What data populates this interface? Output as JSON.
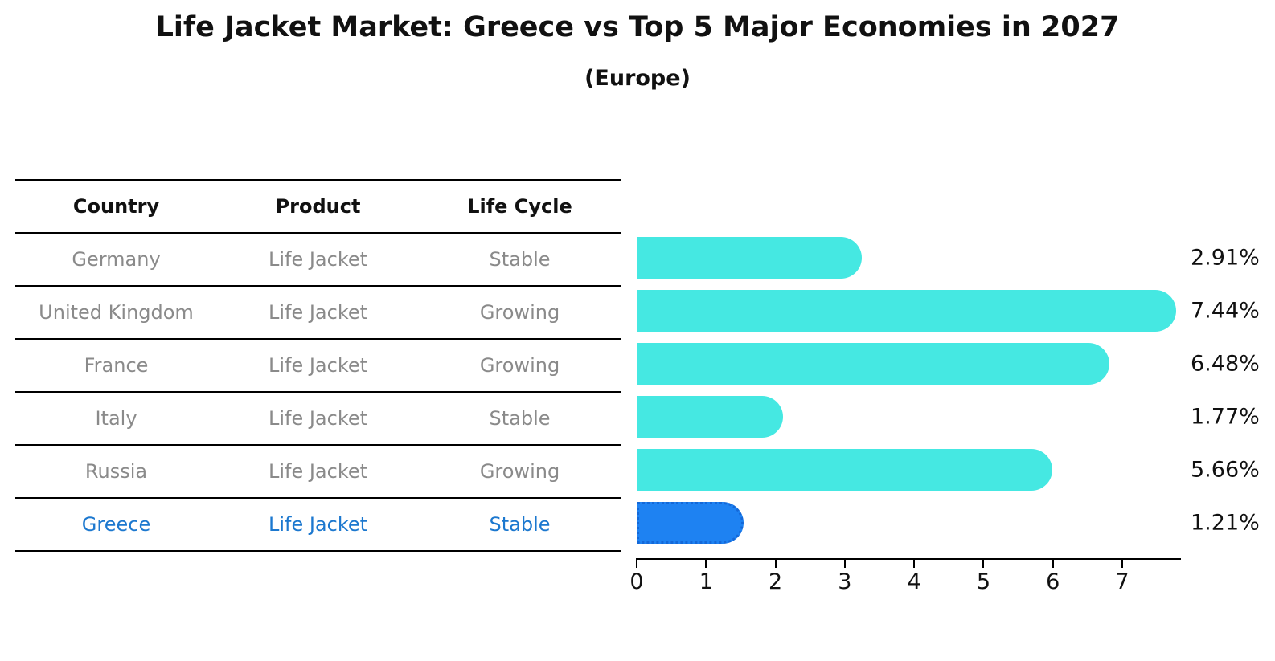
{
  "title": "Life Jacket Market: Greece vs Top 5 Major Economies in 2027",
  "subtitle": "(Europe)",
  "table": {
    "headers": [
      "Country",
      "Product",
      "Life Cycle"
    ],
    "rows": [
      {
        "country": "Germany",
        "product": "Life Jacket",
        "life_cycle": "Stable"
      },
      {
        "country": "United Kingdom",
        "product": "Life Jacket",
        "life_cycle": "Growing"
      },
      {
        "country": "France",
        "product": "Life Jacket",
        "life_cycle": "Growing"
      },
      {
        "country": "Italy",
        "product": "Life Jacket",
        "life_cycle": "Stable"
      },
      {
        "country": "Russia",
        "product": "Life Jacket",
        "life_cycle": "Growing"
      },
      {
        "country": "Greece",
        "product": "Life Jacket",
        "life_cycle": "Stable"
      }
    ],
    "highlight_row": "Greece"
  },
  "chart_data": {
    "type": "bar",
    "orientation": "horizontal",
    "categories": [
      "Germany",
      "United Kingdom",
      "France",
      "Italy",
      "Russia",
      "Greece"
    ],
    "values": [
      2.91,
      7.44,
      6.48,
      1.77,
      5.66,
      1.21
    ],
    "value_labels": [
      "2.91%",
      "7.44%",
      "6.48%",
      "1.77%",
      "5.66%",
      "1.21%"
    ],
    "highlight_category": "Greece",
    "x_ticks": [
      0,
      1,
      2,
      3,
      4,
      5,
      6,
      7
    ],
    "xlim": [
      0,
      7.85
    ],
    "xlabel": "",
    "ylabel": "",
    "grid": false,
    "legend": false,
    "bar_color": "#45e8e2",
    "highlight_bar_color": "#1e82f2",
    "highlight_text_color": "#1c78cf",
    "axis_color": "#000000",
    "label_color": "#111111",
    "row_text_color": "#8a8a8a"
  }
}
